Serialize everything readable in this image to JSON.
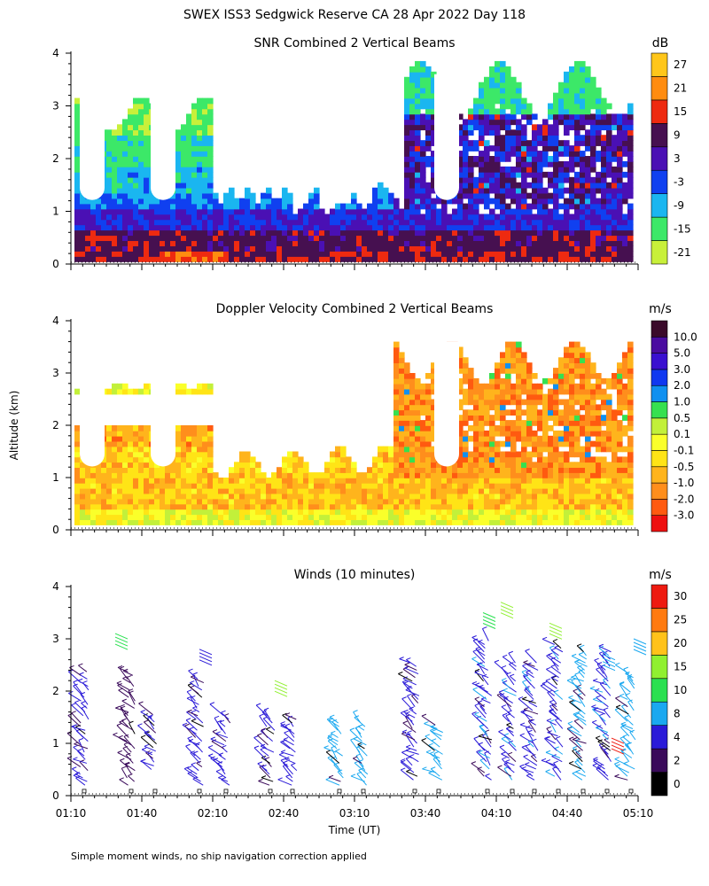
{
  "figure": {
    "title": "SWEX ISS3 Sedgwick Reserve CA  28 Apr 2022 Day 118",
    "ylabel": "Altitude (km)",
    "xlabel": "Time (UT)",
    "footnote": "Simple moment winds, no ship navigation correction applied"
  },
  "colors": {
    "snr": [
      "#c8f03a",
      "#3ce868",
      "#1ab6f0",
      "#1040f0",
      "#4a10b4",
      "#461050",
      "#ee2a10",
      "#ff8c10",
      "#ffc61a"
    ],
    "doppler": [
      "#ee1010",
      "#ff5a10",
      "#ff8e1c",
      "#ffb41c",
      "#ffe416",
      "#faff2a",
      "#c2f03a",
      "#36e050",
      "#1090f0",
      "#1038f0",
      "#3a10d0",
      "#4a0ca0",
      "#3a0a2a"
    ],
    "wind": [
      "#000000",
      "#3a0a5a",
      "#2a1ad8",
      "#1aa8f0",
      "#2ae050",
      "#90f030",
      "#ffc21a",
      "#ff7a10",
      "#ee1a10"
    ]
  },
  "chart_data": [
    {
      "type": "heatmap",
      "title": "SNR Combined 2 Vertical Beams",
      "unit": "dB",
      "x_range": [
        "01:10",
        "05:10"
      ],
      "y_range": [
        0,
        4
      ],
      "colorbar_ticks": [
        "-21",
        "-15",
        "-9",
        "-3",
        "3",
        "9",
        "15",
        "21",
        "27"
      ],
      "y_ticks": [
        "0",
        "1",
        "2",
        "3",
        "4"
      ]
    },
    {
      "type": "heatmap",
      "title": "Doppler Velocity Combined 2 Vertical Beams",
      "unit": "m/s",
      "x_range": [
        "01:10",
        "05:10"
      ],
      "y_range": [
        0,
        4
      ],
      "colorbar_ticks": [
        "-3.0",
        "-2.0",
        "-1.0",
        "-0.5",
        "-0.1",
        "0.1",
        "0.5",
        "1.0",
        "2.0",
        "3.0",
        "5.0",
        "10.0"
      ],
      "y_ticks": [
        "0",
        "1",
        "2",
        "3",
        "4"
      ]
    },
    {
      "type": "scatter",
      "title": "Winds (10 minutes)",
      "unit": "m/s",
      "x_range": [
        "01:10",
        "05:10"
      ],
      "y_range": [
        0,
        4
      ],
      "colorbar_ticks": [
        "0",
        "2",
        "4",
        "8",
        "10",
        "15",
        "20",
        "25",
        "30"
      ],
      "y_ticks": [
        "0",
        "1",
        "2",
        "3",
        "4"
      ],
      "x_ticks": [
        "01:10",
        "01:40",
        "02:10",
        "02:40",
        "03:10",
        "03:40",
        "04:10",
        "04:40",
        "05:10"
      ]
    }
  ]
}
